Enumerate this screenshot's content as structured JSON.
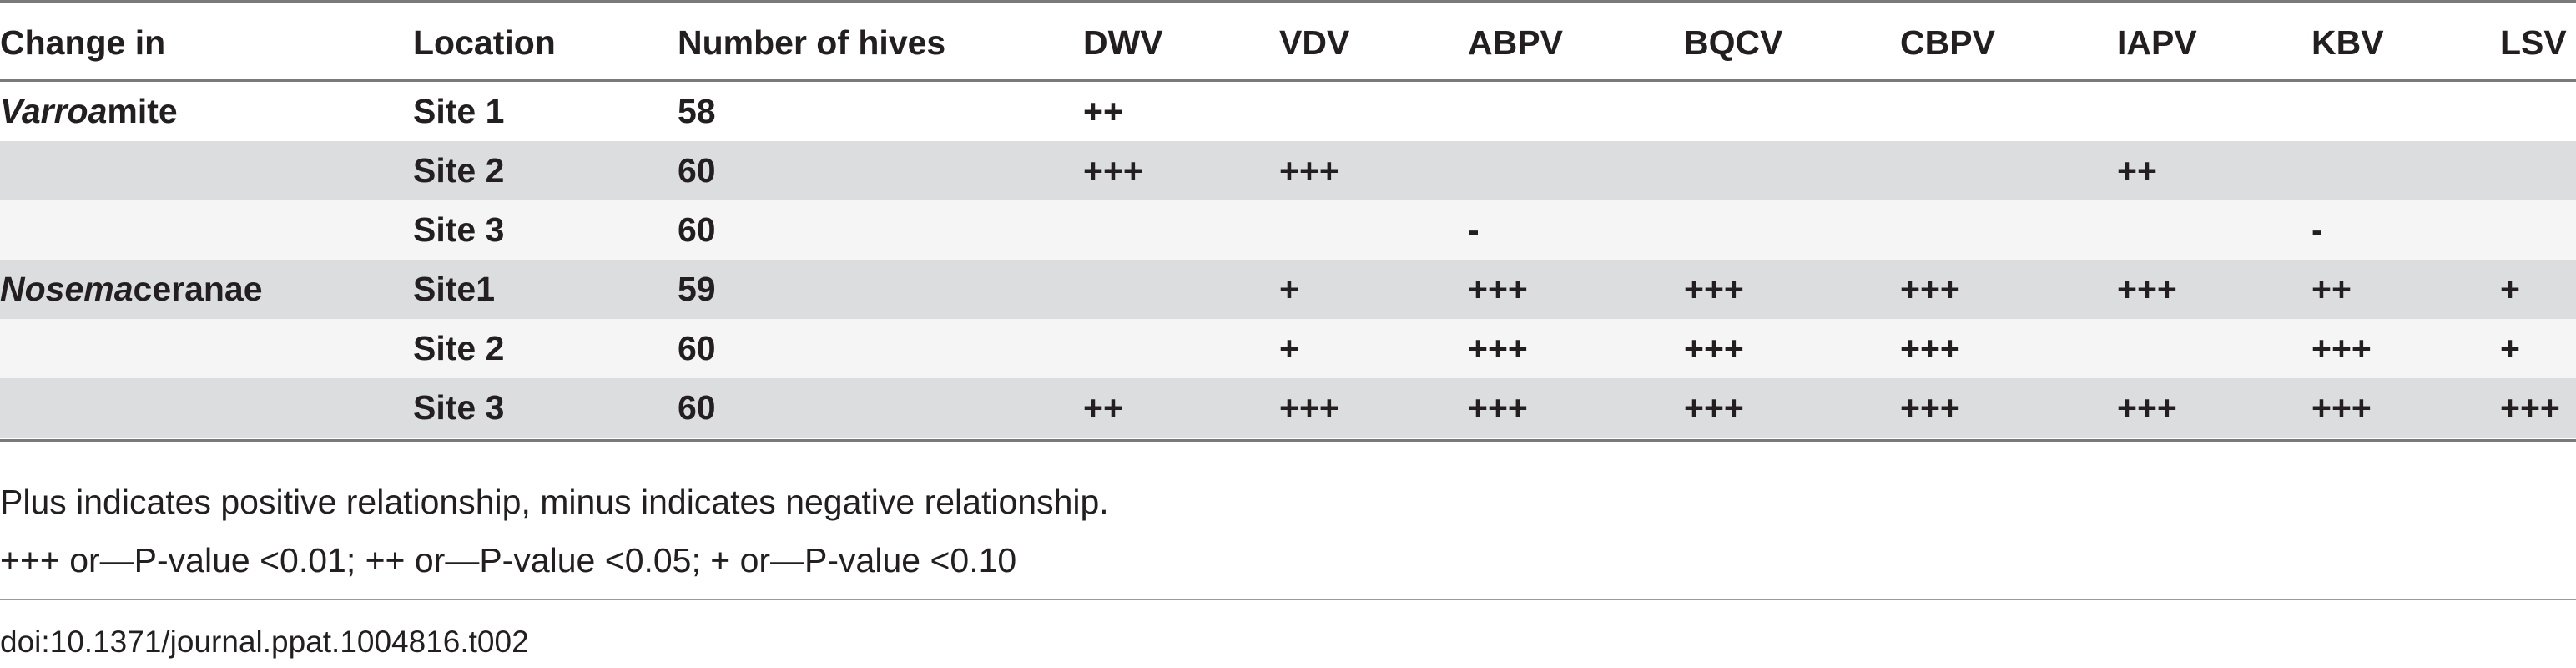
{
  "table": {
    "headers": [
      "Change in",
      "Location",
      "Number of hives",
      "DWV",
      "VDV",
      "ABPV",
      "BQCV",
      "CBPV",
      "IAPV",
      "KBV",
      "LSV"
    ],
    "rows": [
      {
        "change_italic": "Varroa",
        "change_rest": " mite",
        "location": "Site 1",
        "hives": "58",
        "DWV": "++",
        "VDV": "",
        "ABPV": "",
        "BQCV": "",
        "CBPV": "",
        "IAPV": "",
        "KBV": "",
        "LSV": ""
      },
      {
        "change_italic": "",
        "change_rest": "",
        "location": "Site 2",
        "hives": "60",
        "DWV": "+++",
        "VDV": "+++",
        "ABPV": "",
        "BQCV": "",
        "CBPV": "",
        "IAPV": "++",
        "KBV": "",
        "LSV": ""
      },
      {
        "change_italic": "",
        "change_rest": "",
        "location": "Site 3",
        "hives": "60",
        "DWV": "",
        "VDV": "",
        "ABPV": "-",
        "BQCV": "",
        "CBPV": "",
        "IAPV": "",
        "KBV": "-",
        "LSV": ""
      },
      {
        "change_italic": "Nosema",
        "change_rest": " ceranae",
        "location": "Site1",
        "hives": "59",
        "DWV": "",
        "VDV": "+",
        "ABPV": "+++",
        "BQCV": "+++",
        "CBPV": "+++",
        "IAPV": "+++",
        "KBV": "++",
        "LSV": "+"
      },
      {
        "change_italic": "",
        "change_rest": "",
        "location": "Site 2",
        "hives": "60",
        "DWV": "",
        "VDV": "+",
        "ABPV": "+++",
        "BQCV": "+++",
        "CBPV": "+++",
        "IAPV": "",
        "KBV": "+++",
        "LSV": "+"
      },
      {
        "change_italic": "",
        "change_rest": "",
        "location": "Site 3",
        "hives": "60",
        "DWV": "++",
        "VDV": "+++",
        "ABPV": "+++",
        "BQCV": "+++",
        "CBPV": "+++",
        "IAPV": "+++",
        "KBV": "+++",
        "LSV": "+++"
      }
    ]
  },
  "footnotes": [
    "Plus indicates positive relationship, minus indicates negative relationship.",
    "+++ or—P-value <0.01; ++ or—P-value <0.05; + or—P-value <0.10"
  ],
  "doi": "doi:10.1371/journal.ppat.1004816.t002",
  "colors": {
    "shaded_row": "#dcdddf",
    "light_row": "#f5f5f5",
    "rule": "#7a7a7a",
    "text": "#231f20"
  }
}
